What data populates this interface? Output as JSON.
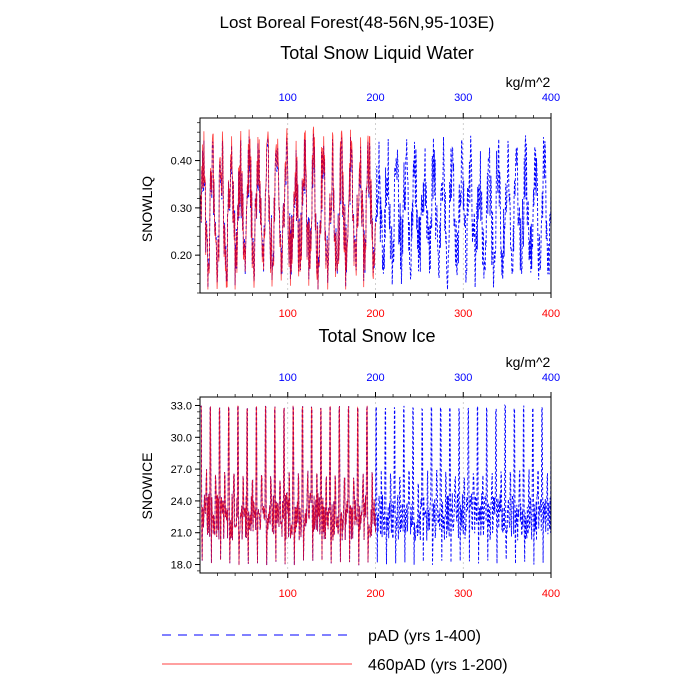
{
  "figure": {
    "title": "Lost Boreal Forest(48-56N,95-103E)"
  },
  "colors": {
    "series_pad": "#0000ff",
    "series_460pad": "#ff0000",
    "axis": "#000000",
    "grid": "#bbbbbb"
  },
  "legend": {
    "items": [
      {
        "label": "pAD (yrs 1-400)",
        "color": "#0000ff",
        "dash": "dashed"
      },
      {
        "label": "460pAD (yrs 1-200)",
        "color": "#ff0000",
        "dash": "solid"
      }
    ]
  },
  "chart_data": [
    {
      "type": "line",
      "title": "Total Snow Liquid Water",
      "units": "kg/m^2",
      "ylabel": "SNOWLIQ",
      "xlabel": "",
      "xlim": [
        0,
        400
      ],
      "ylim": [
        0.12,
        0.49
      ],
      "yticks": [
        0.2,
        0.3,
        0.4
      ],
      "ytick_labels": [
        "0.20",
        "0.30",
        "0.40"
      ],
      "xticks": [
        100,
        200,
        300,
        400
      ],
      "xtick_labels": [
        "100",
        "200",
        "300",
        "400"
      ],
      "top_xticks": [
        100,
        200,
        300,
        400
      ],
      "top_xtick_labels": [
        "100",
        "200",
        "300",
        "400"
      ],
      "series": [
        {
          "name": "pAD (yrs 1-400)",
          "color": "#0000ff",
          "dash": "dashed",
          "x_start": 1,
          "x_end": 400,
          "period": 10.5,
          "peak": 0.45,
          "trough": 0.155,
          "mean": 0.29
        },
        {
          "name": "460pAD (yrs 1-200)",
          "color": "#ff0000",
          "dash": "solid",
          "x_start": 1,
          "x_end": 200,
          "period": 10.5,
          "peak": 0.47,
          "trough": 0.16,
          "mean": 0.29
        }
      ]
    },
    {
      "type": "line",
      "title": "Total Snow Ice",
      "units": "kg/m^2",
      "ylabel": "SNOWICE",
      "xlabel": "",
      "xlim": [
        0,
        400
      ],
      "ylim": [
        17.2,
        33.8
      ],
      "yticks": [
        18,
        21,
        24,
        27,
        30,
        33
      ],
      "ytick_labels": [
        "18.0",
        "21.0",
        "24.0",
        "27.0",
        "30.0",
        "33.0"
      ],
      "xticks": [
        100,
        200,
        300,
        400
      ],
      "xtick_labels": [
        "100",
        "200",
        "300",
        "400"
      ],
      "top_xticks": [
        100,
        200,
        300,
        400
      ],
      "top_xtick_labels": [
        "100",
        "200",
        "300",
        "400"
      ],
      "series": [
        {
          "name": "pAD (yrs 1-400)",
          "color": "#0000ff",
          "dash": "dashed",
          "x_start": 1,
          "x_end": 400,
          "period": 10.5,
          "peak": 33.0,
          "trough": 17.9,
          "mean": 22.5
        },
        {
          "name": "460pAD (yrs 1-200)",
          "color": "#ff0000",
          "dash": "solid",
          "x_start": 1,
          "x_end": 200,
          "period": 10.5,
          "peak": 33.0,
          "trough": 17.9,
          "mean": 22.5
        }
      ]
    }
  ]
}
